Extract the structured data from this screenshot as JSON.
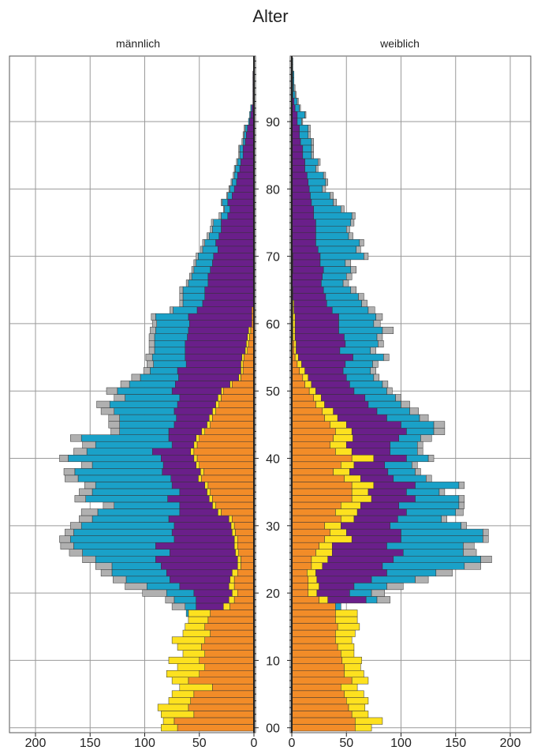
{
  "chart_data": {
    "type": "bar",
    "orientation": "horizontal",
    "title": "Alter",
    "panels": {
      "left": "männlich",
      "right": "weiblich"
    },
    "x_ticks": [
      0,
      50,
      100,
      150,
      200
    ],
    "xlim": [
      0,
      220
    ],
    "age_ticks": [
      0,
      10,
      20,
      30,
      40,
      50,
      60,
      70,
      80,
      90
    ],
    "ylim": [
      0,
      99
    ],
    "grid": true,
    "series_colors": {
      "orange": "#f28c28",
      "yellow": "#fde11f",
      "purple": "#6a1f8a",
      "blue": "#1aa1c8",
      "grey": "#b0b0b0"
    },
    "male": {
      "orange": [
        70,
        73,
        55,
        60,
        58,
        55,
        38,
        60,
        50,
        45,
        50,
        45,
        48,
        45,
        40,
        45,
        42,
        40,
        22,
        18,
        15,
        18,
        18,
        15,
        12,
        12,
        14,
        15,
        15,
        17,
        18,
        20,
        30,
        35,
        38,
        40,
        42,
        48,
        46,
        50,
        52,
        55,
        52,
        50,
        45,
        40,
        38,
        35,
        32,
        30,
        28,
        20,
        12,
        10,
        10,
        9,
        6,
        5,
        4,
        3,
        2,
        2,
        2,
        0,
        0,
        0,
        0,
        0,
        0,
        0,
        0,
        0,
        0,
        0,
        0,
        0,
        0,
        0,
        0,
        0,
        0,
        0,
        0,
        0,
        0,
        0,
        0,
        0,
        0,
        0,
        0,
        0,
        0,
        0,
        0,
        0,
        0,
        0,
        0,
        0
      ],
      "yellow": [
        15,
        10,
        30,
        28,
        20,
        20,
        30,
        15,
        30,
        25,
        28,
        20,
        22,
        30,
        25,
        18,
        18,
        20,
        6,
        5,
        5,
        5,
        4,
        5,
        3,
        3,
        3,
        3,
        3,
        3,
        3,
        3,
        3,
        3,
        3,
        3,
        3,
        3,
        3,
        3,
        3,
        3,
        3,
        3,
        3,
        3,
        3,
        3,
        3,
        3,
        2,
        2,
        2,
        2,
        2,
        2,
        2,
        2,
        2,
        2,
        0,
        0,
        0,
        0,
        0,
        0,
        0,
        0,
        0,
        0,
        0,
        0,
        0,
        0,
        0,
        0,
        0,
        0,
        0,
        0,
        0,
        0,
        0,
        0,
        0,
        0,
        0,
        0,
        0,
        0,
        0,
        0,
        0,
        0,
        0,
        0,
        0,
        0,
        0,
        0
      ],
      "purple": [
        0,
        0,
        0,
        0,
        0,
        0,
        0,
        0,
        0,
        0,
        0,
        0,
        0,
        0,
        0,
        0,
        0,
        0,
        25,
        30,
        35,
        45,
        55,
        60,
        70,
        75,
        60,
        72,
        55,
        55,
        52,
        55,
        35,
        30,
        38,
        25,
        30,
        25,
        35,
        30,
        30,
        35,
        20,
        25,
        30,
        30,
        30,
        35,
        35,
        35,
        45,
        50,
        55,
        58,
        50,
        52,
        55,
        56,
        55,
        55,
        57,
        58,
        50,
        47,
        45,
        45,
        42,
        42,
        40,
        38,
        37,
        33,
        35,
        32,
        30,
        30,
        24,
        22,
        24,
        20,
        18,
        16,
        15,
        13,
        12,
        10,
        10,
        8,
        7,
        6,
        4,
        3,
        2,
        1,
        1,
        1,
        1,
        1,
        0,
        0
      ],
      "blue": [
        0,
        0,
        0,
        0,
        0,
        0,
        0,
        0,
        0,
        0,
        0,
        0,
        0,
        0,
        0,
        0,
        0,
        2,
        10,
        20,
        25,
        30,
        40,
        50,
        45,
        55,
        80,
        75,
        95,
        90,
        85,
        70,
        75,
        60,
        75,
        80,
        70,
        85,
        80,
        65,
        85,
        60,
        70,
        80,
        45,
        50,
        52,
        55,
        62,
        50,
        50,
        42,
        35,
        25,
        30,
        30,
        28,
        28,
        30,
        30,
        30,
        30,
        22,
        18,
        20,
        20,
        18,
        15,
        15,
        15,
        14,
        14,
        10,
        9,
        8,
        7,
        6,
        5,
        5,
        4,
        4,
        4,
        3,
        4,
        3,
        3,
        3,
        2,
        2,
        2,
        1,
        1,
        1,
        0,
        0,
        0,
        0,
        0,
        0,
        0
      ],
      "grey": [
        0,
        0,
        0,
        0,
        0,
        0,
        0,
        0,
        0,
        0,
        0,
        0,
        0,
        0,
        0,
        0,
        0,
        0,
        12,
        8,
        22,
        20,
        12,
        10,
        15,
        12,
        12,
        12,
        10,
        8,
        10,
        12,
        15,
        10,
        10,
        12,
        10,
        12,
        10,
        10,
        8,
        12,
        12,
        10,
        8,
        10,
        10,
        12,
        12,
        10,
        10,
        8,
        8,
        6,
        6,
        6,
        5,
        5,
        5,
        5,
        4,
        4,
        3,
        3,
        3,
        3,
        2,
        2,
        2,
        2,
        2,
        2,
        2,
        2,
        2,
        2,
        2,
        1,
        1,
        1,
        1,
        1,
        1,
        1,
        1,
        1,
        1,
        1,
        1,
        1,
        0,
        0,
        0,
        0,
        0,
        0,
        0,
        0,
        0,
        0
      ]
    },
    "female": {
      "orange": [
        58,
        58,
        55,
        52,
        50,
        48,
        45,
        55,
        48,
        48,
        46,
        45,
        42,
        40,
        40,
        42,
        40,
        40,
        40,
        25,
        15,
        15,
        15,
        14,
        18,
        18,
        22,
        25,
        30,
        35,
        30,
        45,
        40,
        45,
        55,
        55,
        55,
        48,
        38,
        45,
        55,
        40,
        35,
        38,
        40,
        35,
        30,
        28,
        22,
        20,
        16,
        12,
        10,
        7,
        5,
        3,
        2,
        2,
        1,
        1,
        1,
        1,
        1,
        1,
        0,
        0,
        0,
        0,
        1,
        1,
        1,
        0,
        0,
        0,
        0,
        0,
        0,
        0,
        0,
        0,
        0,
        0,
        0,
        0,
        0,
        0,
        0,
        0,
        0,
        0,
        0,
        0,
        0,
        0,
        0,
        0,
        0,
        0,
        0,
        0
      ],
      "yellow": [
        15,
        25,
        15,
        15,
        20,
        18,
        15,
        15,
        18,
        15,
        18,
        12,
        15,
        15,
        18,
        20,
        20,
        20,
        0,
        8,
        8,
        10,
        8,
        8,
        10,
        15,
        15,
        12,
        25,
        15,
        15,
        12,
        20,
        18,
        18,
        15,
        20,
        15,
        15,
        12,
        20,
        15,
        15,
        18,
        15,
        15,
        12,
        10,
        8,
        7,
        6,
        6,
        5,
        5,
        4,
        3,
        2,
        2,
        2,
        2,
        2,
        2,
        1,
        1,
        1,
        1,
        0,
        0,
        0,
        0,
        0,
        0,
        0,
        0,
        0,
        0,
        0,
        0,
        0,
        0,
        0,
        0,
        0,
        0,
        0,
        0,
        0,
        0,
        0,
        0,
        0,
        0,
        0,
        0,
        0,
        0,
        0,
        0,
        0,
        0
      ],
      "purple": [
        0,
        0,
        0,
        0,
        0,
        0,
        0,
        0,
        0,
        0,
        0,
        0,
        0,
        0,
        0,
        0,
        0,
        0,
        0,
        35,
        30,
        32,
        50,
        65,
        55,
        60,
        65,
        50,
        45,
        50,
        45,
        40,
        45,
        35,
        40,
        35,
        38,
        30,
        35,
        28,
        30,
        35,
        40,
        42,
        50,
        50,
        45,
        40,
        40,
        40,
        35,
        35,
        35,
        35,
        40,
        50,
        40,
        45,
        45,
        40,
        40,
        40,
        35,
        30,
        30,
        28,
        27,
        28,
        28,
        25,
        25,
        24,
        22,
        22,
        22,
        22,
        20,
        20,
        18,
        17,
        16,
        15,
        14,
        12,
        12,
        10,
        10,
        8,
        7,
        7,
        5,
        5,
        3,
        2,
        1,
        1,
        1,
        1,
        0,
        0
      ],
      "blue": [
        0,
        0,
        0,
        0,
        0,
        0,
        0,
        0,
        0,
        0,
        0,
        0,
        0,
        0,
        0,
        0,
        0,
        0,
        5,
        10,
        20,
        30,
        40,
        45,
        75,
        80,
        55,
        70,
        75,
        75,
        65,
        40,
        45,
        55,
        40,
        30,
        40,
        30,
        25,
        25,
        20,
        25,
        25,
        20,
        25,
        30,
        30,
        30,
        30,
        28,
        30,
        30,
        25,
        25,
        25,
        28,
        28,
        30,
        30,
        40,
        32,
        34,
        33,
        32,
        30,
        25,
        20,
        22,
        25,
        23,
        40,
        35,
        40,
        30,
        28,
        32,
        35,
        25,
        20,
        18,
        12,
        16,
        15,
        10,
        12,
        8,
        8,
        10,
        8,
        8,
        4,
        7,
        4,
        3,
        2,
        1,
        1,
        1,
        1,
        1
      ],
      "grey": [
        0,
        0,
        0,
        0,
        0,
        0,
        0,
        0,
        0,
        0,
        0,
        0,
        0,
        0,
        0,
        0,
        0,
        0,
        0,
        12,
        12,
        15,
        12,
        15,
        15,
        10,
        12,
        10,
        5,
        5,
        5,
        5,
        7,
        5,
        5,
        5,
        5,
        5,
        5,
        5,
        5,
        5,
        5,
        10,
        10,
        10,
        8,
        8,
        8,
        5,
        5,
        5,
        5,
        5,
        5,
        5,
        5,
        5,
        5,
        10,
        6,
        6,
        6,
        5,
        5,
        5,
        5,
        5,
        5,
        5,
        4,
        4,
        4,
        4,
        3,
        3,
        3,
        3,
        3,
        3,
        3,
        2,
        2,
        2,
        2,
        2,
        2,
        2,
        2,
        2,
        1,
        1,
        1,
        1,
        1,
        1,
        0,
        0,
        0,
        0
      ]
    }
  }
}
